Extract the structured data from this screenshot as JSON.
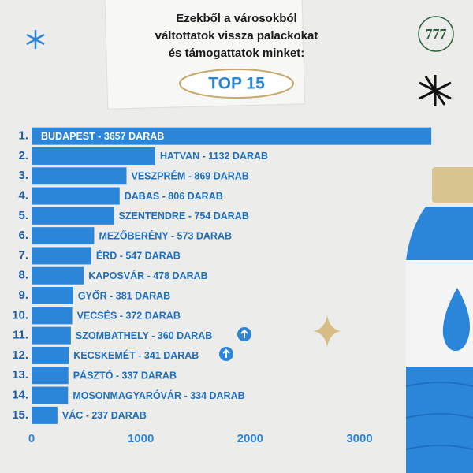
{
  "header": {
    "title_lines": [
      "Ezekből a városokból",
      "váltottatok vissza palackokat",
      "és támogattatok minket:"
    ],
    "badge": "TOP 15",
    "logo": "777"
  },
  "chart_data": {
    "type": "bar",
    "orientation": "horizontal",
    "color": "#2b86d9",
    "categories": [
      "1.",
      "2.",
      "3.",
      "4.",
      "5.",
      "6.",
      "7.",
      "8.",
      "9.",
      "10.",
      "11.",
      "12.",
      "13.",
      "14.",
      "15."
    ],
    "values": [
      3657,
      1132,
      869,
      806,
      754,
      573,
      547,
      478,
      381,
      372,
      360,
      341,
      337,
      334,
      237
    ],
    "value_labels": [
      "BUDAPEST - 3657 DARAB",
      "HATVAN - 1132 DARAB",
      "VESZPRÉM - 869 DARAB",
      "DABAS - 806 DARAB",
      "SZENTENDRE - 754 DARAB",
      "MEZŐBERÉNY - 573 DARAB",
      "ÉRD - 547 DARAB",
      "KAPOSVÁR - 478 DARAB",
      "GYŐR - 381 DARAB",
      "VECSÉS - 372 DARAB",
      "SZOMBATHELY - 360 DARAB",
      "KECSKEMÉT - 341 DARAB",
      "PÁSZTÓ - 337 DARAB",
      "MOSONMAGYARÓVÁR - 334 DARAB",
      "VÁC - 237 DARAB"
    ],
    "xlim": [
      0,
      3750
    ],
    "xticks": [
      0,
      1000,
      2000,
      3000
    ]
  }
}
